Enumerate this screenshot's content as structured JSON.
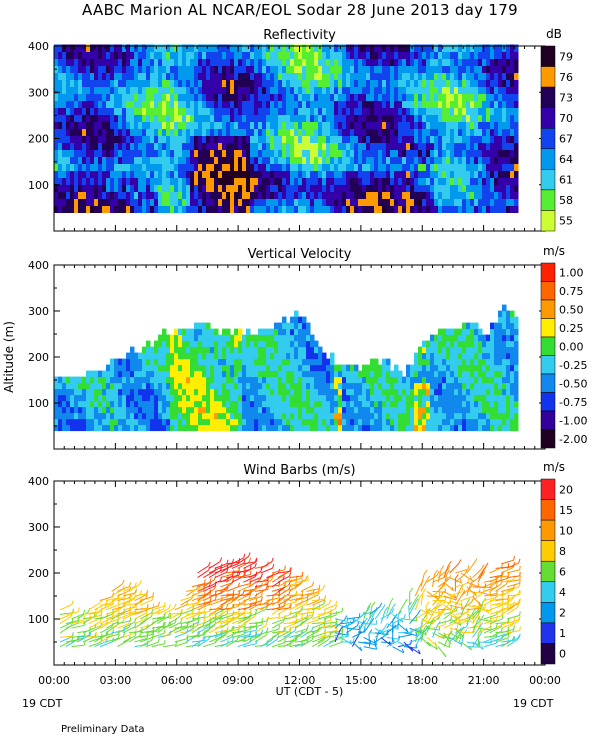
{
  "figure": {
    "title": "AABC Marion AL NCAR/EOL Sodar  28 June 2013 day 179",
    "footer_left": "19 CDT",
    "footer_right": "19 CDT",
    "note": "Preliminary Data"
  },
  "chart_data": [
    {
      "type": "heatmap",
      "title": "Reflectivity",
      "ylabel": "",
      "ylim": [
        0,
        400
      ],
      "yticks": [
        100,
        200,
        300,
        400
      ],
      "data_range_m": [
        40,
        400
      ],
      "data_end_hour": 22.6,
      "colorbar": {
        "unit": "dB",
        "labels": [
          "55",
          "58",
          "61",
          "64",
          "67",
          "70",
          "73",
          "76",
          "79"
        ],
        "colors": [
          "#ccff33",
          "#55ee33",
          "#33ccee",
          "#0099ee",
          "#1144ee",
          "#3300aa",
          "#220055",
          "#ff9900",
          "#220022"
        ]
      }
    },
    {
      "type": "heatmap",
      "title": "Vertical Velocity",
      "ylabel": "Altitude (m)",
      "ylim": [
        0,
        400
      ],
      "yticks": [
        100,
        200,
        300,
        400
      ],
      "data_end_hour": 22.6,
      "colorbar": {
        "unit": "m/s",
        "labels": [
          "1.00",
          "0.75",
          "0.50",
          "0.25",
          "0.00",
          "-0.25",
          "-0.50",
          "-0.75",
          "-1.00",
          "-2.00"
        ],
        "colors": [
          "#ff2200",
          "#ff6600",
          "#ff9900",
          "#ffee00",
          "#33dd33",
          "#33ccee",
          "#1188ee",
          "#1133ee",
          "#330099",
          "#220022"
        ]
      },
      "top_profile": [
        {
          "hour": 0.0,
          "top_m": 160
        },
        {
          "hour": 1.0,
          "top_m": 150
        },
        {
          "hour": 2.0,
          "top_m": 165
        },
        {
          "hour": 3.0,
          "top_m": 190
        },
        {
          "hour": 4.0,
          "top_m": 210
        },
        {
          "hour": 5.0,
          "top_m": 235
        },
        {
          "hour": 6.0,
          "top_m": 260
        },
        {
          "hour": 7.0,
          "top_m": 270
        },
        {
          "hour": 8.0,
          "top_m": 255
        },
        {
          "hour": 9.0,
          "top_m": 250
        },
        {
          "hour": 10.0,
          "top_m": 255
        },
        {
          "hour": 11.0,
          "top_m": 270
        },
        {
          "hour": 12.0,
          "top_m": 295
        },
        {
          "hour": 13.0,
          "top_m": 210
        },
        {
          "hour": 14.0,
          "top_m": 170
        },
        {
          "hour": 15.0,
          "top_m": 175
        },
        {
          "hour": 16.0,
          "top_m": 190
        },
        {
          "hour": 17.0,
          "top_m": 160
        },
        {
          "hour": 18.0,
          "top_m": 230
        },
        {
          "hour": 19.0,
          "top_m": 250
        },
        {
          "hour": 20.0,
          "top_m": 270
        },
        {
          "hour": 21.0,
          "top_m": 245
        },
        {
          "hour": 22.0,
          "top_m": 310
        },
        {
          "hour": 22.6,
          "top_m": 275
        }
      ]
    },
    {
      "type": "scatter",
      "title": "Wind Barbs (m/s)",
      "ylabel": "",
      "ylim": [
        0,
        400
      ],
      "yticks": [
        100,
        200,
        300,
        400
      ],
      "colorbar": {
        "unit": "m/s",
        "labels": [
          "20",
          "15",
          "10",
          "8",
          "6",
          "4",
          "2",
          "1",
          "0"
        ],
        "colors": [
          "#ff2222",
          "#ff6600",
          "#ff9900",
          "#ffcc00",
          "#66dd33",
          "#33ccee",
          "#0099ee",
          "#2233ee",
          "#220044"
        ]
      },
      "top_profile": [
        {
          "hour": 0.3,
          "top_m": 130
        },
        {
          "hour": 1.0,
          "top_m": 100
        },
        {
          "hour": 2.0,
          "top_m": 140
        },
        {
          "hour": 3.0,
          "top_m": 165
        },
        {
          "hour": 4.0,
          "top_m": 170
        },
        {
          "hour": 5.0,
          "top_m": 110
        },
        {
          "hour": 6.0,
          "top_m": 130
        },
        {
          "hour": 7.0,
          "top_m": 200
        },
        {
          "hour": 8.0,
          "top_m": 220
        },
        {
          "hour": 9.0,
          "top_m": 225
        },
        {
          "hour": 10.0,
          "top_m": 215
        },
        {
          "hour": 11.0,
          "top_m": 200
        },
        {
          "hour": 12.0,
          "top_m": 190
        },
        {
          "hour": 13.0,
          "top_m": 130
        },
        {
          "hour": 14.0,
          "top_m": 100
        },
        {
          "hour": 15.0,
          "top_m": 110
        },
        {
          "hour": 16.0,
          "top_m": 120
        },
        {
          "hour": 17.0,
          "top_m": 110
        },
        {
          "hour": 18.0,
          "top_m": 180
        },
        {
          "hour": 19.0,
          "top_m": 200
        },
        {
          "hour": 20.0,
          "top_m": 205
        },
        {
          "hour": 21.0,
          "top_m": 190
        },
        {
          "hour": 22.0,
          "top_m": 230
        }
      ]
    }
  ],
  "x_axis": {
    "range_hours": [
      0,
      24
    ],
    "tick_hours": [
      0,
      3,
      6,
      9,
      12,
      15,
      18,
      21,
      24
    ],
    "tick_labels": [
      "00:00",
      "03:00",
      "06:00",
      "09:00",
      "12:00",
      "15:00",
      "18:00",
      "21:00",
      "00:00"
    ],
    "label": "UT  (CDT - 5)"
  }
}
